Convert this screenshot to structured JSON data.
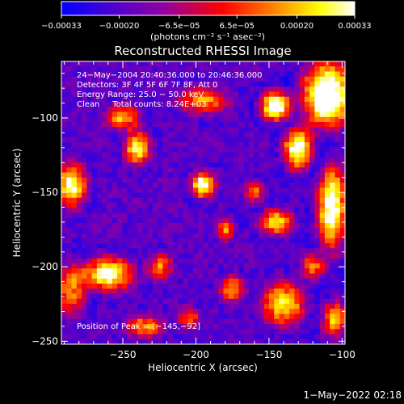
{
  "chart_data": {
    "type": "heatmap",
    "title": "Reconstructed RHESSI Image",
    "xlabel": "Heliocentric X (arcsec)",
    "ylabel": "Heliocentric Y (arcsec)",
    "xlim": [
      -292,
      -98
    ],
    "ylim": [
      -252,
      -62
    ],
    "x_ticks": [
      {
        "value": -250,
        "label": "−250"
      },
      {
        "value": -200,
        "label": "−200"
      },
      {
        "value": -150,
        "label": "−150"
      },
      {
        "value": -100,
        "label": "−100"
      }
    ],
    "y_ticks": [
      {
        "value": -100,
        "label": "−100"
      },
      {
        "value": -150,
        "label": "−150"
      },
      {
        "value": -200,
        "label": "−200"
      },
      {
        "value": -250,
        "label": "−250"
      }
    ],
    "colorbar": {
      "min": -0.00033,
      "max": 0.00033,
      "ticks": [
        {
          "value": -0.00033,
          "label": "−0.00033"
        },
        {
          "value": -0.0002,
          "label": "−0.00020"
        },
        {
          "value": -6.5e-05,
          "label": "−6.5e−05"
        },
        {
          "value": 6.5e-05,
          "label": "6.5e−05"
        },
        {
          "value": 0.0002,
          "label": "0.00020"
        },
        {
          "value": 0.00033,
          "label": "0.00033"
        }
      ],
      "unit_label": "(photons cm⁻² s⁻¹ asec⁻²)",
      "colors": [
        "#0000ff",
        "#4b00d0",
        "#9000a0",
        "#ff0000",
        "#ff8000",
        "#ffff00",
        "#ffffff"
      ]
    },
    "annotations": {
      "line1": "24−May−2004 20:40:36.000 to 20:46:36.000",
      "line2": "Detectors: 3F 4F 5F 6F 7F 8F, Att 0",
      "line3": "Energy Range: 25.0 − 50.0 keV",
      "line4": "Clean     Total counts: 8.24E+03",
      "peak": "Position of Peak = [−145,−92]"
    },
    "peak_position": [
      -145,
      -92
    ],
    "bright_sources": [
      {
        "x": -110,
        "y": -85,
        "sx": 12,
        "sy": 16,
        "amp": 1.0
      },
      {
        "x": -145,
        "y": -92,
        "sx": 7,
        "sy": 7,
        "amp": 1.0
      },
      {
        "x": -130,
        "y": -120,
        "sx": 7,
        "sy": 10,
        "amp": 0.9
      },
      {
        "x": -107,
        "y": -160,
        "sx": 7,
        "sy": 20,
        "amp": 0.85
      },
      {
        "x": -145,
        "y": -170,
        "sx": 8,
        "sy": 6,
        "amp": 0.7
      },
      {
        "x": -195,
        "y": -145,
        "sx": 6,
        "sy": 6,
        "amp": 0.85
      },
      {
        "x": -180,
        "y": -175,
        "sx": 4,
        "sy": 5,
        "amp": 0.55
      },
      {
        "x": -240,
        "y": -120,
        "sx": 6,
        "sy": 8,
        "amp": 0.75
      },
      {
        "x": -285,
        "y": -145,
        "sx": 7,
        "sy": 10,
        "amp": 0.8
      },
      {
        "x": -260,
        "y": -205,
        "sx": 12,
        "sy": 8,
        "amp": 0.8
      },
      {
        "x": -225,
        "y": -200,
        "sx": 6,
        "sy": 6,
        "amp": 0.55
      },
      {
        "x": -285,
        "y": -215,
        "sx": 7,
        "sy": 12,
        "amp": 0.55
      },
      {
        "x": -250,
        "y": -100,
        "sx": 8,
        "sy": 6,
        "amp": 0.6
      },
      {
        "x": -195,
        "y": -88,
        "sx": 12,
        "sy": 6,
        "amp": 0.55
      },
      {
        "x": -140,
        "y": -225,
        "sx": 10,
        "sy": 10,
        "amp": 0.7
      },
      {
        "x": -175,
        "y": -215,
        "sx": 6,
        "sy": 6,
        "amp": 0.55
      },
      {
        "x": -105,
        "y": -235,
        "sx": 6,
        "sy": 8,
        "amp": 0.6
      },
      {
        "x": -235,
        "y": -240,
        "sx": 9,
        "sy": 5,
        "amp": 0.55
      },
      {
        "x": -160,
        "y": -150,
        "sx": 5,
        "sy": 5,
        "amp": 0.45
      },
      {
        "x": -205,
        "y": -235,
        "sx": 5,
        "sy": 5,
        "amp": 0.5
      },
      {
        "x": -120,
        "y": -200,
        "sx": 6,
        "sy": 6,
        "amp": 0.55
      }
    ]
  },
  "footer": {
    "timestamp": "1−May−2022 02:18"
  }
}
